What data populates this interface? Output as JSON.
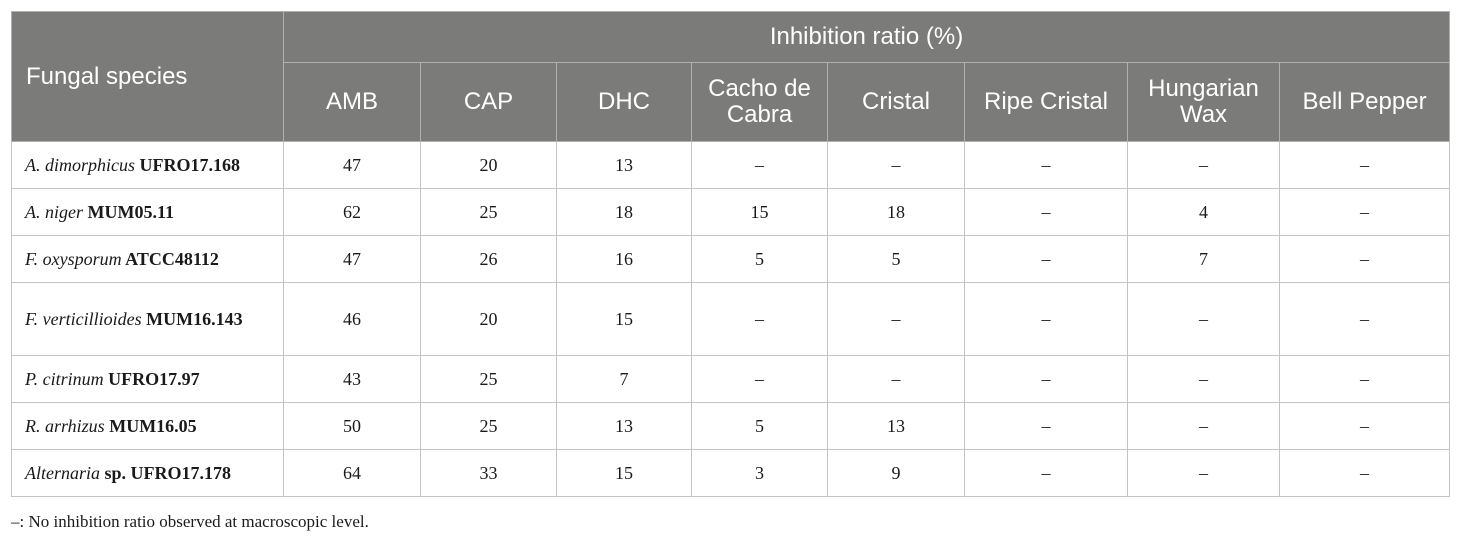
{
  "table": {
    "species_header": "Fungal species",
    "group_header": "Inhibition ratio (%)",
    "columns": [
      "AMB",
      "CAP",
      "DHC",
      "Cacho de Cabra",
      "Cristal",
      "Ripe Cristal",
      "Hungarian Wax",
      "Bell Pepper"
    ],
    "rows": [
      {
        "species_italic": "A. dimorphicus",
        "species_rest": " UFRO17.168",
        "values": [
          "47",
          "20",
          "13",
          "–",
          "–",
          "–",
          "–",
          "–"
        ]
      },
      {
        "species_italic": "A. niger",
        "species_rest": " MUM05.11",
        "values": [
          "62",
          "25",
          "18",
          "15",
          "18",
          "–",
          "4",
          "–"
        ]
      },
      {
        "species_italic": "F. oxysporum",
        "species_rest": " ATCC48112",
        "values": [
          "47",
          "26",
          "16",
          "5",
          "5",
          "–",
          "7",
          "–"
        ]
      },
      {
        "species_italic": "F. verticillioides",
        "species_rest": " MUM16.143",
        "values": [
          "46",
          "20",
          "15",
          "–",
          "–",
          "–",
          "–",
          "–"
        ]
      },
      {
        "species_italic": "P. citrinum",
        "species_rest": " UFRO17.97",
        "values": [
          "43",
          "25",
          "7",
          "–",
          "–",
          "–",
          "–",
          "–"
        ]
      },
      {
        "species_italic": "R. arrhizus",
        "species_rest": " MUM16.05",
        "values": [
          "50",
          "25",
          "13",
          "5",
          "13",
          "–",
          "–",
          "–"
        ]
      },
      {
        "species_italic": "Alternaria",
        "species_rest": " sp. UFRO17.178",
        "values": [
          "64",
          "33",
          "15",
          "3",
          "9",
          "–",
          "–",
          "–"
        ]
      }
    ]
  },
  "footnote": "–: No inhibition ratio observed at macroscopic level.",
  "colors": {
    "header_bg": "#7b7b79",
    "header_text": "#ffffff",
    "border": "#c4c4c4"
  }
}
